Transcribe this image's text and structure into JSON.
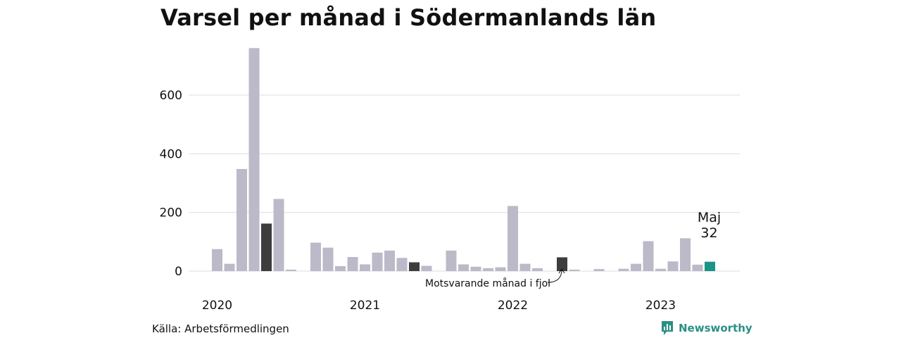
{
  "title": "Varsel per månad i Södermanlands län",
  "source": "Källa: Arbetsförmedlingen",
  "brand": {
    "name": "Newsworthy",
    "icon": "newsworthy-logo-icon",
    "color": "#2a8f84"
  },
  "annotation": "Motsvarande månad i fjol",
  "highlight": {
    "month": "Maj",
    "value": "32"
  },
  "colors": {
    "default": "#bcb9c9",
    "previous_year": "#3d3d3d",
    "current": "#1a9486",
    "grid": "#dddddd"
  },
  "chart_data": {
    "type": "bar",
    "title": "Varsel per månad i Södermanlands län",
    "xlabel": "",
    "ylabel": "",
    "ylim": [
      0,
      750
    ],
    "yticks": [
      0,
      200,
      400,
      600
    ],
    "grid": true,
    "year_labels": [
      {
        "label": "2020",
        "index": 0
      },
      {
        "label": "2021",
        "index": 12
      },
      {
        "label": "2022",
        "index": 24
      },
      {
        "label": "2023",
        "index": 36
      }
    ],
    "categories": [
      "2020-01",
      "2020-02",
      "2020-03",
      "2020-04",
      "2020-05",
      "2020-06",
      "2020-07",
      "2020-08",
      "2020-09",
      "2020-10",
      "2020-11",
      "2020-12",
      "2021-01",
      "2021-02",
      "2021-03",
      "2021-04",
      "2021-05",
      "2021-06",
      "2021-07",
      "2021-08",
      "2021-09",
      "2021-10",
      "2021-11",
      "2021-12",
      "2022-01",
      "2022-02",
      "2022-03",
      "2022-04",
      "2022-05",
      "2022-06",
      "2022-07",
      "2022-08",
      "2022-09",
      "2022-10",
      "2022-11",
      "2022-12",
      "2023-01",
      "2023-02",
      "2023-03",
      "2023-04",
      "2023-05"
    ],
    "values": [
      75,
      25,
      348,
      760,
      162,
      246,
      5,
      0,
      97,
      80,
      17,
      48,
      23,
      63,
      70,
      45,
      30,
      18,
      0,
      70,
      23,
      15,
      10,
      13,
      222,
      25,
      10,
      0,
      47,
      5,
      0,
      7,
      0,
      8,
      25,
      102,
      8,
      33,
      112,
      22,
      32
    ],
    "highlight_index": 40,
    "previous_year_indices": [
      4,
      16,
      28
    ]
  }
}
